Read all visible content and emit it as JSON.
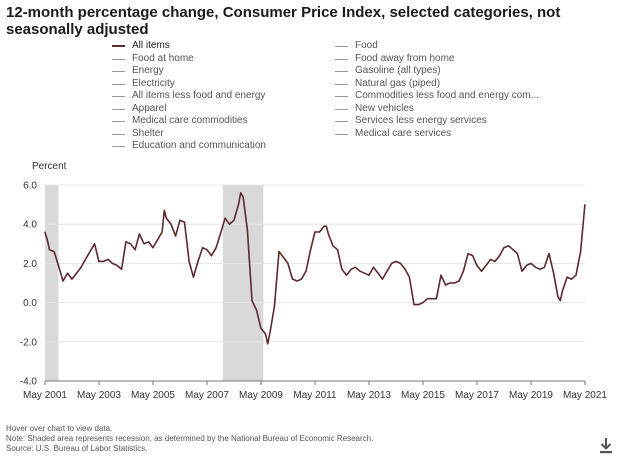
{
  "title": "12-month percentage change, Consumer Price Index, selected categories, not seasonally adjusted",
  "legend": {
    "left": [
      {
        "label": "All items",
        "active": true
      },
      {
        "label": "Food at home",
        "active": false
      },
      {
        "label": "Energy",
        "active": false
      },
      {
        "label": "Electricity",
        "active": false
      },
      {
        "label": "All items less food and energy",
        "active": false
      },
      {
        "label": "Apparel",
        "active": false
      },
      {
        "label": "Medical care commodities",
        "active": false
      },
      {
        "label": "Shelter",
        "active": false
      },
      {
        "label": "Education and communication",
        "active": false
      }
    ],
    "right": [
      {
        "label": "Food",
        "active": false
      },
      {
        "label": "Food away from home",
        "active": false
      },
      {
        "label": "Gasoline (all types)",
        "active": false
      },
      {
        "label": "Natural gas (piped)",
        "active": false
      },
      {
        "label": "Commodities less food and energy com...",
        "active": false
      },
      {
        "label": "New vehicles",
        "active": false
      },
      {
        "label": "Services less energy services",
        "active": false
      },
      {
        "label": "Medical care services",
        "active": false
      }
    ]
  },
  "notes": [
    "Hover over chart to view data.",
    "Note: Shaded area represents recession, as determined by the National Bureau of Economic Research.",
    "Source: U.S. Bureau of Labor Statistics."
  ],
  "download_icon": "download-icon",
  "colors": {
    "series": "#5c2a2e",
    "recession": "#d9d9d9",
    "grid": "#e4e4e4"
  },
  "chart_data": {
    "type": "line",
    "title": "12-month percentage change, Consumer Price Index, selected categories, not seasonally adjusted",
    "ylabel": "Percent",
    "xlabel": "",
    "ylim": [
      -4.0,
      6.0
    ],
    "yticks": [
      "6.0",
      "4.0",
      "2.0",
      "0.0",
      "-2.0",
      "-4.0"
    ],
    "xlim": [
      2001.333,
      2021.333
    ],
    "xticks": [
      "May 2001",
      "May 2003",
      "May 2005",
      "May 2007",
      "May 2009",
      "May 2011",
      "May 2013",
      "May 2015",
      "May 2017",
      "May 2019",
      "May 2021"
    ],
    "grid": true,
    "legend_placement": "top",
    "recessions": [
      [
        2001.17,
        2001.83
      ],
      [
        2007.92,
        2009.42
      ]
    ],
    "series": [
      {
        "name": "All items",
        "x": [
          2001.33,
          2001.42,
          2001.5,
          2001.67,
          2001.83,
          2002.0,
          2002.17,
          2002.33,
          2002.5,
          2002.67,
          2002.83,
          2003.0,
          2003.17,
          2003.33,
          2003.5,
          2003.67,
          2003.83,
          2004.0,
          2004.17,
          2004.33,
          2004.5,
          2004.67,
          2004.83,
          2005.0,
          2005.17,
          2005.33,
          2005.5,
          2005.67,
          2005.75,
          2005.83,
          2006.0,
          2006.17,
          2006.33,
          2006.5,
          2006.67,
          2006.83,
          2007.0,
          2007.17,
          2007.33,
          2007.5,
          2007.67,
          2007.83,
          2008.0,
          2008.17,
          2008.33,
          2008.5,
          2008.58,
          2008.67,
          2008.83,
          2009.0,
          2009.17,
          2009.33,
          2009.5,
          2009.58,
          2009.67,
          2009.83,
          2010.0,
          2010.17,
          2010.33,
          2010.5,
          2010.67,
          2010.83,
          2011.0,
          2011.17,
          2011.33,
          2011.5,
          2011.67,
          2011.75,
          2011.83,
          2012.0,
          2012.17,
          2012.33,
          2012.5,
          2012.67,
          2012.83,
          2013.0,
          2013.17,
          2013.33,
          2013.5,
          2013.67,
          2013.83,
          2014.0,
          2014.17,
          2014.33,
          2014.5,
          2014.67,
          2014.83,
          2015.0,
          2015.17,
          2015.33,
          2015.5,
          2015.67,
          2015.83,
          2016.0,
          2016.17,
          2016.33,
          2016.5,
          2016.67,
          2016.83,
          2017.0,
          2017.17,
          2017.33,
          2017.5,
          2017.67,
          2017.83,
          2018.0,
          2018.17,
          2018.33,
          2018.5,
          2018.67,
          2018.83,
          2019.0,
          2019.17,
          2019.33,
          2019.5,
          2019.67,
          2019.83,
          2020.0,
          2020.17,
          2020.33,
          2020.42,
          2020.5,
          2020.67,
          2020.83,
          2021.0,
          2021.17,
          2021.33
        ],
        "values": [
          3.6,
          3.2,
          2.7,
          2.6,
          1.9,
          1.1,
          1.5,
          1.2,
          1.5,
          1.8,
          2.2,
          2.6,
          3.0,
          2.1,
          2.1,
          2.2,
          2.0,
          1.9,
          1.7,
          3.1,
          3.0,
          2.7,
          3.5,
          3.0,
          3.1,
          2.8,
          3.2,
          3.6,
          4.7,
          4.3,
          4.0,
          3.4,
          4.2,
          4.1,
          2.1,
          1.3,
          2.1,
          2.8,
          2.7,
          2.4,
          2.8,
          3.5,
          4.3,
          4.0,
          4.2,
          5.0,
          5.6,
          5.4,
          3.7,
          0.1,
          -0.4,
          -1.3,
          -1.6,
          -2.1,
          -1.5,
          -0.2,
          2.6,
          2.3,
          2.0,
          1.2,
          1.1,
          1.2,
          1.6,
          2.7,
          3.6,
          3.6,
          3.9,
          3.9,
          3.5,
          2.9,
          2.7,
          1.7,
          1.4,
          1.7,
          1.8,
          1.6,
          1.5,
          1.4,
          1.8,
          1.5,
          1.2,
          1.6,
          2.0,
          2.1,
          2.0,
          1.7,
          1.3,
          -0.1,
          -0.1,
          0.0,
          0.2,
          0.2,
          0.2,
          1.4,
          0.9,
          1.0,
          1.0,
          1.1,
          1.6,
          2.5,
          2.4,
          1.9,
          1.6,
          1.9,
          2.2,
          2.1,
          2.4,
          2.8,
          2.9,
          2.7,
          2.5,
          1.6,
          1.9,
          2.0,
          1.8,
          1.7,
          1.8,
          2.5,
          1.5,
          0.3,
          0.1,
          0.6,
          1.3,
          1.2,
          1.4,
          2.6,
          5.0
        ]
      }
    ]
  }
}
